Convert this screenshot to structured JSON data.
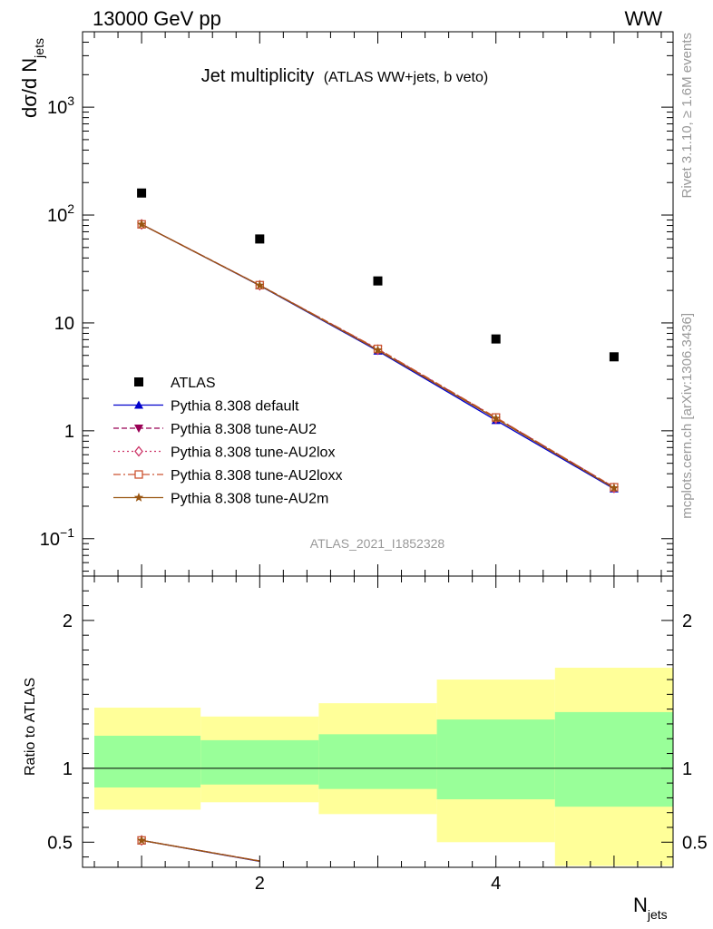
{
  "header": {
    "left": "13000 GeV pp",
    "right": "WW"
  },
  "side": {
    "rivet": "Rivet 3.1.10, ≥ 1.6M events",
    "mcplots": "mcplots.cern.ch [arXiv:1306.3436]"
  },
  "colors": {
    "green_band": "#99ff99",
    "yellow_band": "#ffff99"
  },
  "chart_data": [
    {
      "type": "scatter",
      "title": "Jet multiplicity",
      "subtitle": "(ATLAS WW+jets, b veto)",
      "ylabel": "dσ/d N_jets",
      "ylabel_main": "dσ/d N",
      "ylabel_sub": "jets",
      "yscale": "log",
      "xlim": [
        0.5,
        5.5
      ],
      "ylim": [
        0.045,
        5000
      ],
      "yticks": [
        {
          "v": 0.1,
          "base": "10",
          "exp": "−1"
        },
        {
          "v": 1,
          "label": "1"
        },
        {
          "v": 10,
          "label": "10"
        },
        {
          "v": 100,
          "base": "10",
          "exp": "2"
        },
        {
          "v": 1000,
          "base": "10",
          "exp": "3"
        }
      ],
      "legend_position": "lower-left",
      "analysis_tag": "ATLAS_2021_I1852328",
      "x": [
        1,
        2,
        3,
        4,
        5
      ],
      "series": [
        {
          "name": "ATLAS",
          "values": [
            160,
            60,
            24.5,
            7.1,
            4.85
          ],
          "color": "#000000",
          "marker": "square",
          "line": "none"
        },
        {
          "name": "Pythia 8.308 default",
          "values": [
            82,
            22.2,
            5.5,
            1.25,
            0.29
          ],
          "color": "#0000cc",
          "marker": "triangle-up",
          "line": "solid"
        },
        {
          "name": "Pythia 8.308 tune-AU2",
          "values": [
            82,
            22.4,
            5.7,
            1.32,
            0.3
          ],
          "color": "#990055",
          "marker": "triangle-down",
          "line": "dashed"
        },
        {
          "name": "Pythia 8.308 tune-AU2lox",
          "values": [
            82,
            22.3,
            5.65,
            1.3,
            0.295
          ],
          "color": "#cc3366",
          "marker": "diamond-open",
          "line": "dotted"
        },
        {
          "name": "Pythia 8.308 tune-AU2loxx",
          "values": [
            82,
            22.4,
            5.75,
            1.33,
            0.3
          ],
          "color": "#cc5533",
          "marker": "square-open",
          "line": "dashdot"
        },
        {
          "name": "Pythia 8.308 tune-AU2m",
          "values": [
            82,
            22.3,
            5.6,
            1.3,
            0.295
          ],
          "color": "#995511",
          "marker": "star",
          "line": "solid"
        }
      ]
    },
    {
      "type": "area",
      "ylabel": "Ratio to ATLAS",
      "xlabel": "N_jets",
      "xlabel_main": "N",
      "xlabel_sub": "jets",
      "xlim": [
        0.5,
        5.5
      ],
      "ylim": [
        0.33,
        2.3
      ],
      "xticks": [
        2,
        4
      ],
      "yticks": [
        0.5,
        1,
        2
      ],
      "reference_line": 1,
      "bins": [
        [
          0.6,
          1.5
        ],
        [
          1.5,
          2.5
        ],
        [
          2.5,
          3.5
        ],
        [
          3.5,
          4.5
        ],
        [
          4.5,
          5.5
        ]
      ],
      "green_band": [
        [
          0.87,
          1.22
        ],
        [
          0.89,
          1.19
        ],
        [
          0.86,
          1.23
        ],
        [
          0.79,
          1.33
        ],
        [
          0.74,
          1.38
        ]
      ],
      "yellow_band": [
        [
          0.72,
          1.41
        ],
        [
          0.77,
          1.35
        ],
        [
          0.69,
          1.44
        ],
        [
          0.5,
          1.6
        ],
        [
          0.34,
          1.68
        ]
      ],
      "series": [
        {
          "name": "Pythia 8.308 default",
          "x": [
            1,
            2
          ],
          "values": [
            0.512,
            0.37
          ],
          "color": "#0000cc"
        },
        {
          "name": "Pythia 8.308 tune-AU2",
          "x": [
            1,
            2
          ],
          "values": [
            0.512,
            0.373
          ],
          "color": "#990055"
        },
        {
          "name": "Pythia 8.308 tune-AU2lox",
          "x": [
            1,
            2
          ],
          "values": [
            0.512,
            0.372
          ],
          "color": "#cc3366"
        },
        {
          "name": "Pythia 8.308 tune-AU2loxx",
          "x": [
            1,
            2
          ],
          "values": [
            0.512,
            0.373
          ],
          "color": "#cc5533"
        },
        {
          "name": "Pythia 8.308 tune-AU2m",
          "x": [
            1,
            2
          ],
          "values": [
            0.512,
            0.372
          ],
          "color": "#995511"
        }
      ]
    }
  ]
}
